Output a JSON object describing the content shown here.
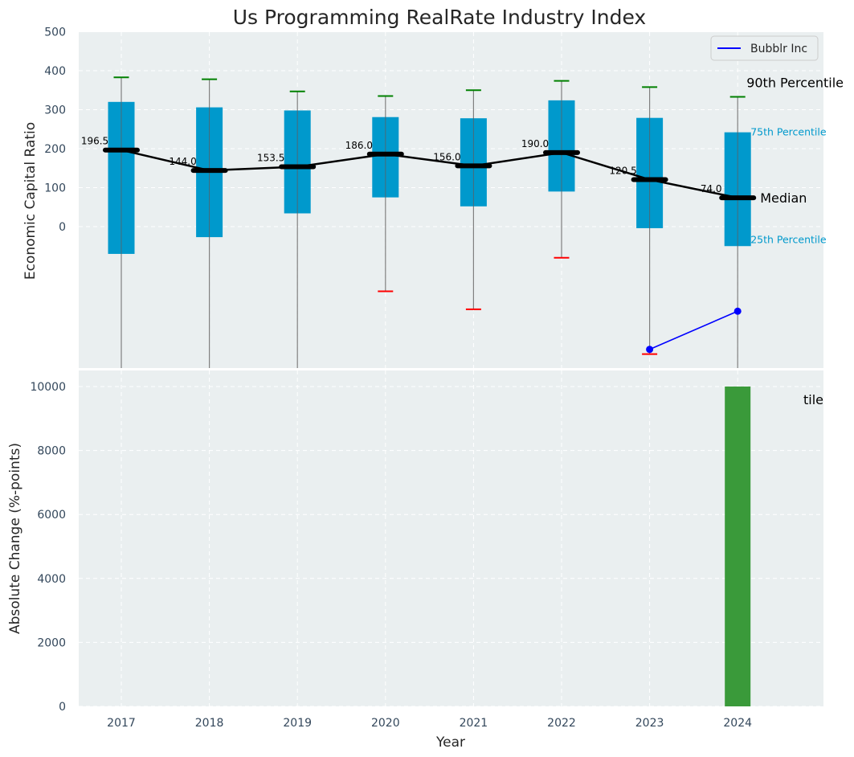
{
  "chart_data": [
    {
      "type": "box",
      "title": "Us Programming RealRate Industry Index",
      "xlabel": "",
      "ylabel": "Economic Capital Ratio",
      "ylim": [
        -360,
        500
      ],
      "yticks": [
        0,
        100,
        200,
        300,
        400,
        500
      ],
      "categories": [
        "2017",
        "2018",
        "2019",
        "2020",
        "2021",
        "2022",
        "2023",
        "2024"
      ],
      "grid": true,
      "boxes": [
        {
          "year": "2017",
          "p25": -70,
          "p75": 320,
          "median": 196.5,
          "whisker_low": null,
          "whisker_high": 383,
          "p10_marker": null,
          "p90_marker": 383
        },
        {
          "year": "2018",
          "p25": -27,
          "p75": 306,
          "median": 144.0,
          "whisker_low": null,
          "whisker_high": 378,
          "p10_marker": null,
          "p90_marker": 378
        },
        {
          "year": "2019",
          "p25": 34,
          "p75": 298,
          "median": 153.5,
          "whisker_low": null,
          "whisker_high": 347,
          "p10_marker": null,
          "p90_marker": 347
        },
        {
          "year": "2020",
          "p25": 75,
          "p75": 281,
          "median": 186.0,
          "whisker_low": -166,
          "whisker_high": 335,
          "p10_marker": -166,
          "p90_marker": 335
        },
        {
          "year": "2021",
          "p25": 52,
          "p75": 278,
          "median": 156.0,
          "whisker_low": -212,
          "whisker_high": 350,
          "p10_marker": -212,
          "p90_marker": 350
        },
        {
          "year": "2022",
          "p25": 90,
          "p75": 324,
          "median": 190.0,
          "whisker_low": -80,
          "whisker_high": 374,
          "p10_marker": -80,
          "p90_marker": 374
        },
        {
          "year": "2023",
          "p25": -4,
          "p75": 279,
          "median": 120.5,
          "whisker_low": -327,
          "whisker_high": 358,
          "p10_marker": -327,
          "p90_marker": 358
        },
        {
          "year": "2024",
          "p25": -50,
          "p75": 242,
          "median": 74.0,
          "whisker_low": null,
          "whisker_high": 333,
          "p10_marker": null,
          "p90_marker": 333
        }
      ],
      "median_labels": [
        "196.5",
        "144.0",
        "153.5",
        "186.0",
        "156.0",
        "190.0",
        "120.5",
        "74.0"
      ],
      "company_series": {
        "name": "Bubblr Inc",
        "x": [
          "2023",
          "2024"
        ],
        "values": [
          -315,
          -217
        ],
        "color": "#0000ff"
      },
      "annotations": {
        "p90": "90th Percentile",
        "p75": "75th Percentile",
        "median": "Median",
        "p25": "25th Percentile"
      },
      "legend": {
        "position": "top-right",
        "entries": [
          "Bubblr Inc"
        ]
      },
      "colors": {
        "box": "#0099cc",
        "median": "#000000",
        "whisker": "#808080",
        "p90": "#008000",
        "p10": "#ff0000",
        "background": "#eaeff0"
      }
    },
    {
      "type": "bar",
      "title": "",
      "xlabel": "Year",
      "ylabel": "Absolute Change (%-points)",
      "ylim": [
        0,
        10500
      ],
      "yticks": [
        0,
        2000,
        4000,
        6000,
        8000,
        10000
      ],
      "categories": [
        "2017",
        "2018",
        "2019",
        "2020",
        "2021",
        "2022",
        "2023",
        "2024"
      ],
      "values": [
        0,
        0,
        0,
        0,
        0,
        0,
        0,
        10000
      ],
      "overflow_label": "tile",
      "grid": true,
      "colors": {
        "bar": "#3a9a3a",
        "background": "#eaeff0"
      }
    }
  ]
}
